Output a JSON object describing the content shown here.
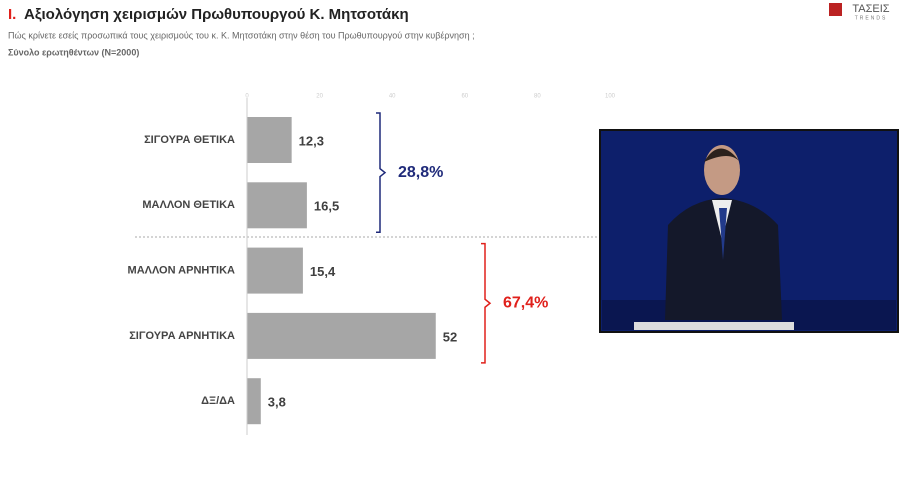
{
  "chart_data": {
    "type": "barh",
    "title_number": "Ι.",
    "title": "Αξιολόγηση χειρισμών Πρωθυπουργού Κ. Μητσοτάκη",
    "subtitle": "Πώς κρίνετε εσείς προσωπικά τους χειρισμούς του κ. Κ. Μητσοτάκη στην θέση του Πρωθυπουργού στην κυβέρνηση ;",
    "base_note": "Σύνολο ερωτηθέντων (N=2000)",
    "logo": "ΤΑΣΕΙΣ",
    "logo_sub": "TRENDS",
    "categories": [
      "ΣΙΓΟΥΡΑ ΘΕΤΙΚΑ",
      "ΜΑΛΛΟΝ ΘΕΤΙΚΑ",
      "ΜΑΛΛΟΝ ΑΡΝΗΤΙΚΑ",
      "ΣΙΓΟΥΡΑ ΑΡΝΗΤΙΚΑ",
      "ΔΞ/ΔΑ"
    ],
    "values": [
      12.3,
      16.5,
      15.4,
      52,
      3.8
    ],
    "value_labels": [
      "12,3",
      "16,5",
      "15,4",
      "52",
      "3,8"
    ],
    "color": "#a6a6a6",
    "xlim": [
      0,
      100
    ],
    "xticks": [
      0,
      20,
      40,
      60,
      80,
      100
    ],
    "annotations": [
      {
        "label": "28,8%",
        "value": 28.8,
        "color": "#1f2a7a"
      },
      {
        "label": "67,4%",
        "value": 67.4,
        "color": "#e0201b"
      }
    ]
  }
}
